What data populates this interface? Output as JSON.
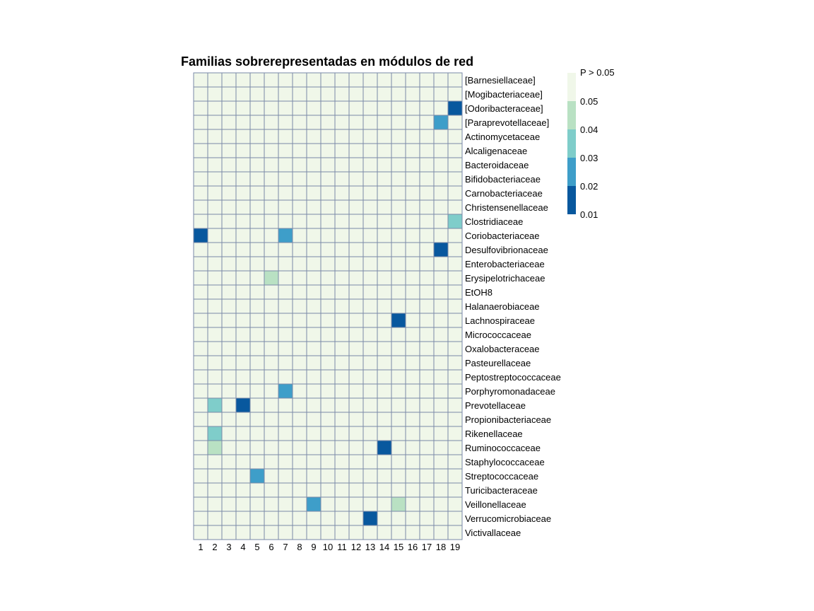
{
  "chart_data": {
    "type": "heatmap",
    "title": "Familias sobrerepresentadas en módulos de red",
    "columns": [
      "1",
      "2",
      "3",
      "4",
      "5",
      "6",
      "7",
      "8",
      "9",
      "10",
      "11",
      "12",
      "13",
      "14",
      "15",
      "16",
      "17",
      "18",
      "19"
    ],
    "rows": [
      "[Barnesiellaceae]",
      "[Mogibacteriaceae]",
      "[Odoribacteraceae]",
      "[Paraprevotellaceae]",
      "Actinomycetaceae",
      "Alcaligenaceae",
      "Bacteroidaceae",
      "Bifidobacteriaceae",
      "Carnobacteriaceae",
      "Christensenellaceae",
      "Clostridiaceae",
      "Coriobacteriaceae",
      "Desulfovibrionaceae",
      "Enterobacteriaceae",
      "Erysipelotrichaceae",
      "EtOH8",
      "Halanaerobiaceae",
      "Lachnospiraceae",
      "Micrococcaceae",
      "Oxalobacteraceae",
      "Pasteurellaceae",
      "Peptostreptococcaceae",
      "Porphyromonadaceae",
      "Prevotellaceae",
      "Propionibacteriaceae",
      "Rikenellaceae",
      "Ruminococcaceae",
      "Staphylococcaceae",
      "Streptococcaceae",
      "Turicibacteraceae",
      "Veillonellaceae",
      "Verrucomicrobiaceae",
      "Victivallaceae"
    ],
    "significant_cells": [
      {
        "row": "[Odoribacteraceae]",
        "column": "19",
        "p": 0.01
      },
      {
        "row": "[Paraprevotellaceae]",
        "column": "18",
        "p": 0.02
      },
      {
        "row": "Clostridiaceae",
        "column": "19",
        "p": 0.03
      },
      {
        "row": "Coriobacteriaceae",
        "column": "1",
        "p": 0.01
      },
      {
        "row": "Coriobacteriaceae",
        "column": "7",
        "p": 0.02
      },
      {
        "row": "Desulfovibrionaceae",
        "column": "18",
        "p": 0.01
      },
      {
        "row": "Erysipelotrichaceae",
        "column": "6",
        "p": 0.04
      },
      {
        "row": "Lachnospiraceae",
        "column": "15",
        "p": 0.01
      },
      {
        "row": "Porphyromonadaceae",
        "column": "7",
        "p": 0.02
      },
      {
        "row": "Prevotellaceae",
        "column": "2",
        "p": 0.03
      },
      {
        "row": "Prevotellaceae",
        "column": "4",
        "p": 0.01
      },
      {
        "row": "Rikenellaceae",
        "column": "2",
        "p": 0.03
      },
      {
        "row": "Ruminococcaceae",
        "column": "2",
        "p": 0.04
      },
      {
        "row": "Ruminococcaceae",
        "column": "14",
        "p": 0.01
      },
      {
        "row": "Streptococcaceae",
        "column": "5",
        "p": 0.02
      },
      {
        "row": "Veillonellaceae",
        "column": "9",
        "p": 0.02
      },
      {
        "row": "Veillonellaceae",
        "column": "15",
        "p": 0.04
      },
      {
        "row": "Verrucomicrobiaceae",
        "column": "13",
        "p": 0.01
      }
    ],
    "default_value": "P > 0.05",
    "legend": {
      "labels": [
        "P > 0.05",
        "0.05",
        "0.04",
        "0.03",
        "0.02",
        "0.01"
      ],
      "bins": [
        {
          "p": 0.01,
          "color": "#08589e"
        },
        {
          "p": 0.02,
          "color": "#3e9ec9"
        },
        {
          "p": 0.03,
          "color": "#7fcdca"
        },
        {
          "p": 0.04,
          "color": "#b9e1c3"
        },
        {
          "p": "P > 0.05",
          "color": "#f0f7e9"
        }
      ],
      "placement": "top-right"
    },
    "grid_color": "#7a8aa8"
  }
}
